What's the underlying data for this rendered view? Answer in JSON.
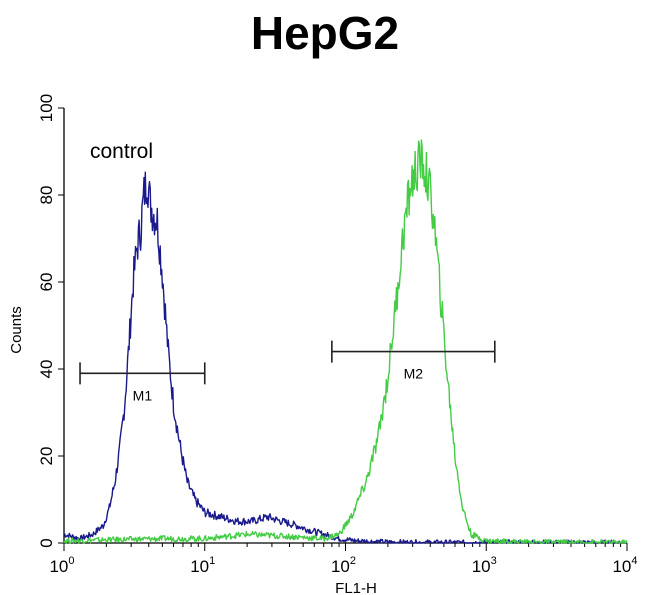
{
  "chart_data": {
    "type": "line",
    "title": "HepG2",
    "xlabel": "FL1-H",
    "ylabel": "Counts",
    "xscale": "log",
    "xlim": [
      1,
      10000
    ],
    "ylim": [
      0,
      100
    ],
    "x_ticks": [
      {
        "base": "10",
        "exp": "0"
      },
      {
        "base": "10",
        "exp": "1"
      },
      {
        "base": "10",
        "exp": "2"
      },
      {
        "base": "10",
        "exp": "3"
      },
      {
        "base": "10",
        "exp": "4"
      }
    ],
    "y_ticks": [
      "0",
      "20",
      "40",
      "60",
      "80",
      "100"
    ],
    "grid": false,
    "annotation": "control",
    "series": [
      {
        "color": "#1a1a8c",
        "points": [
          [
            1.0,
            2
          ],
          [
            1.3,
            1
          ],
          [
            1.6,
            2
          ],
          [
            1.9,
            4
          ],
          [
            2.1,
            8
          ],
          [
            2.3,
            14
          ],
          [
            2.5,
            22
          ],
          [
            2.7,
            32
          ],
          [
            2.9,
            46
          ],
          [
            3.1,
            60
          ],
          [
            3.3,
            68
          ],
          [
            3.5,
            72
          ],
          [
            3.7,
            80
          ],
          [
            3.9,
            84
          ],
          [
            4.1,
            78
          ],
          [
            4.3,
            76
          ],
          [
            4.6,
            74
          ],
          [
            5.0,
            62
          ],
          [
            5.5,
            44
          ],
          [
            6.0,
            32
          ],
          [
            6.7,
            22
          ],
          [
            7.5,
            14
          ],
          [
            8.5,
            10
          ],
          [
            10,
            7
          ],
          [
            13,
            6
          ],
          [
            17,
            5
          ],
          [
            22,
            5
          ],
          [
            28,
            6
          ],
          [
            35,
            5
          ],
          [
            45,
            4
          ],
          [
            55,
            3
          ],
          [
            70,
            2
          ],
          [
            90,
            1
          ],
          [
            120,
            0.5
          ],
          [
            200,
            0.2
          ],
          [
            500,
            0.1
          ],
          [
            10000,
            0.1
          ]
        ]
      },
      {
        "color": "#44cc44",
        "points": [
          [
            1.0,
            0.5
          ],
          [
            5,
            1
          ],
          [
            10,
            1
          ],
          [
            20,
            2
          ],
          [
            40,
            1.5
          ],
          [
            70,
            1
          ],
          [
            90,
            2
          ],
          [
            110,
            6
          ],
          [
            140,
            14
          ],
          [
            170,
            24
          ],
          [
            200,
            38
          ],
          [
            230,
            56
          ],
          [
            260,
            72
          ],
          [
            290,
            82
          ],
          [
            320,
            86
          ],
          [
            350,
            88
          ],
          [
            380,
            84
          ],
          [
            420,
            76
          ],
          [
            470,
            58
          ],
          [
            530,
            38
          ],
          [
            600,
            20
          ],
          [
            680,
            8
          ],
          [
            780,
            2
          ],
          [
            1000,
            0.5
          ],
          [
            2000,
            0.2
          ],
          [
            10000,
            0.1
          ]
        ]
      }
    ],
    "markers": [
      {
        "label": "M1",
        "x_range": [
          1.3,
          10
        ],
        "y": 39
      },
      {
        "label": "M2",
        "x_range": [
          80,
          1150
        ],
        "y": 44
      }
    ]
  }
}
